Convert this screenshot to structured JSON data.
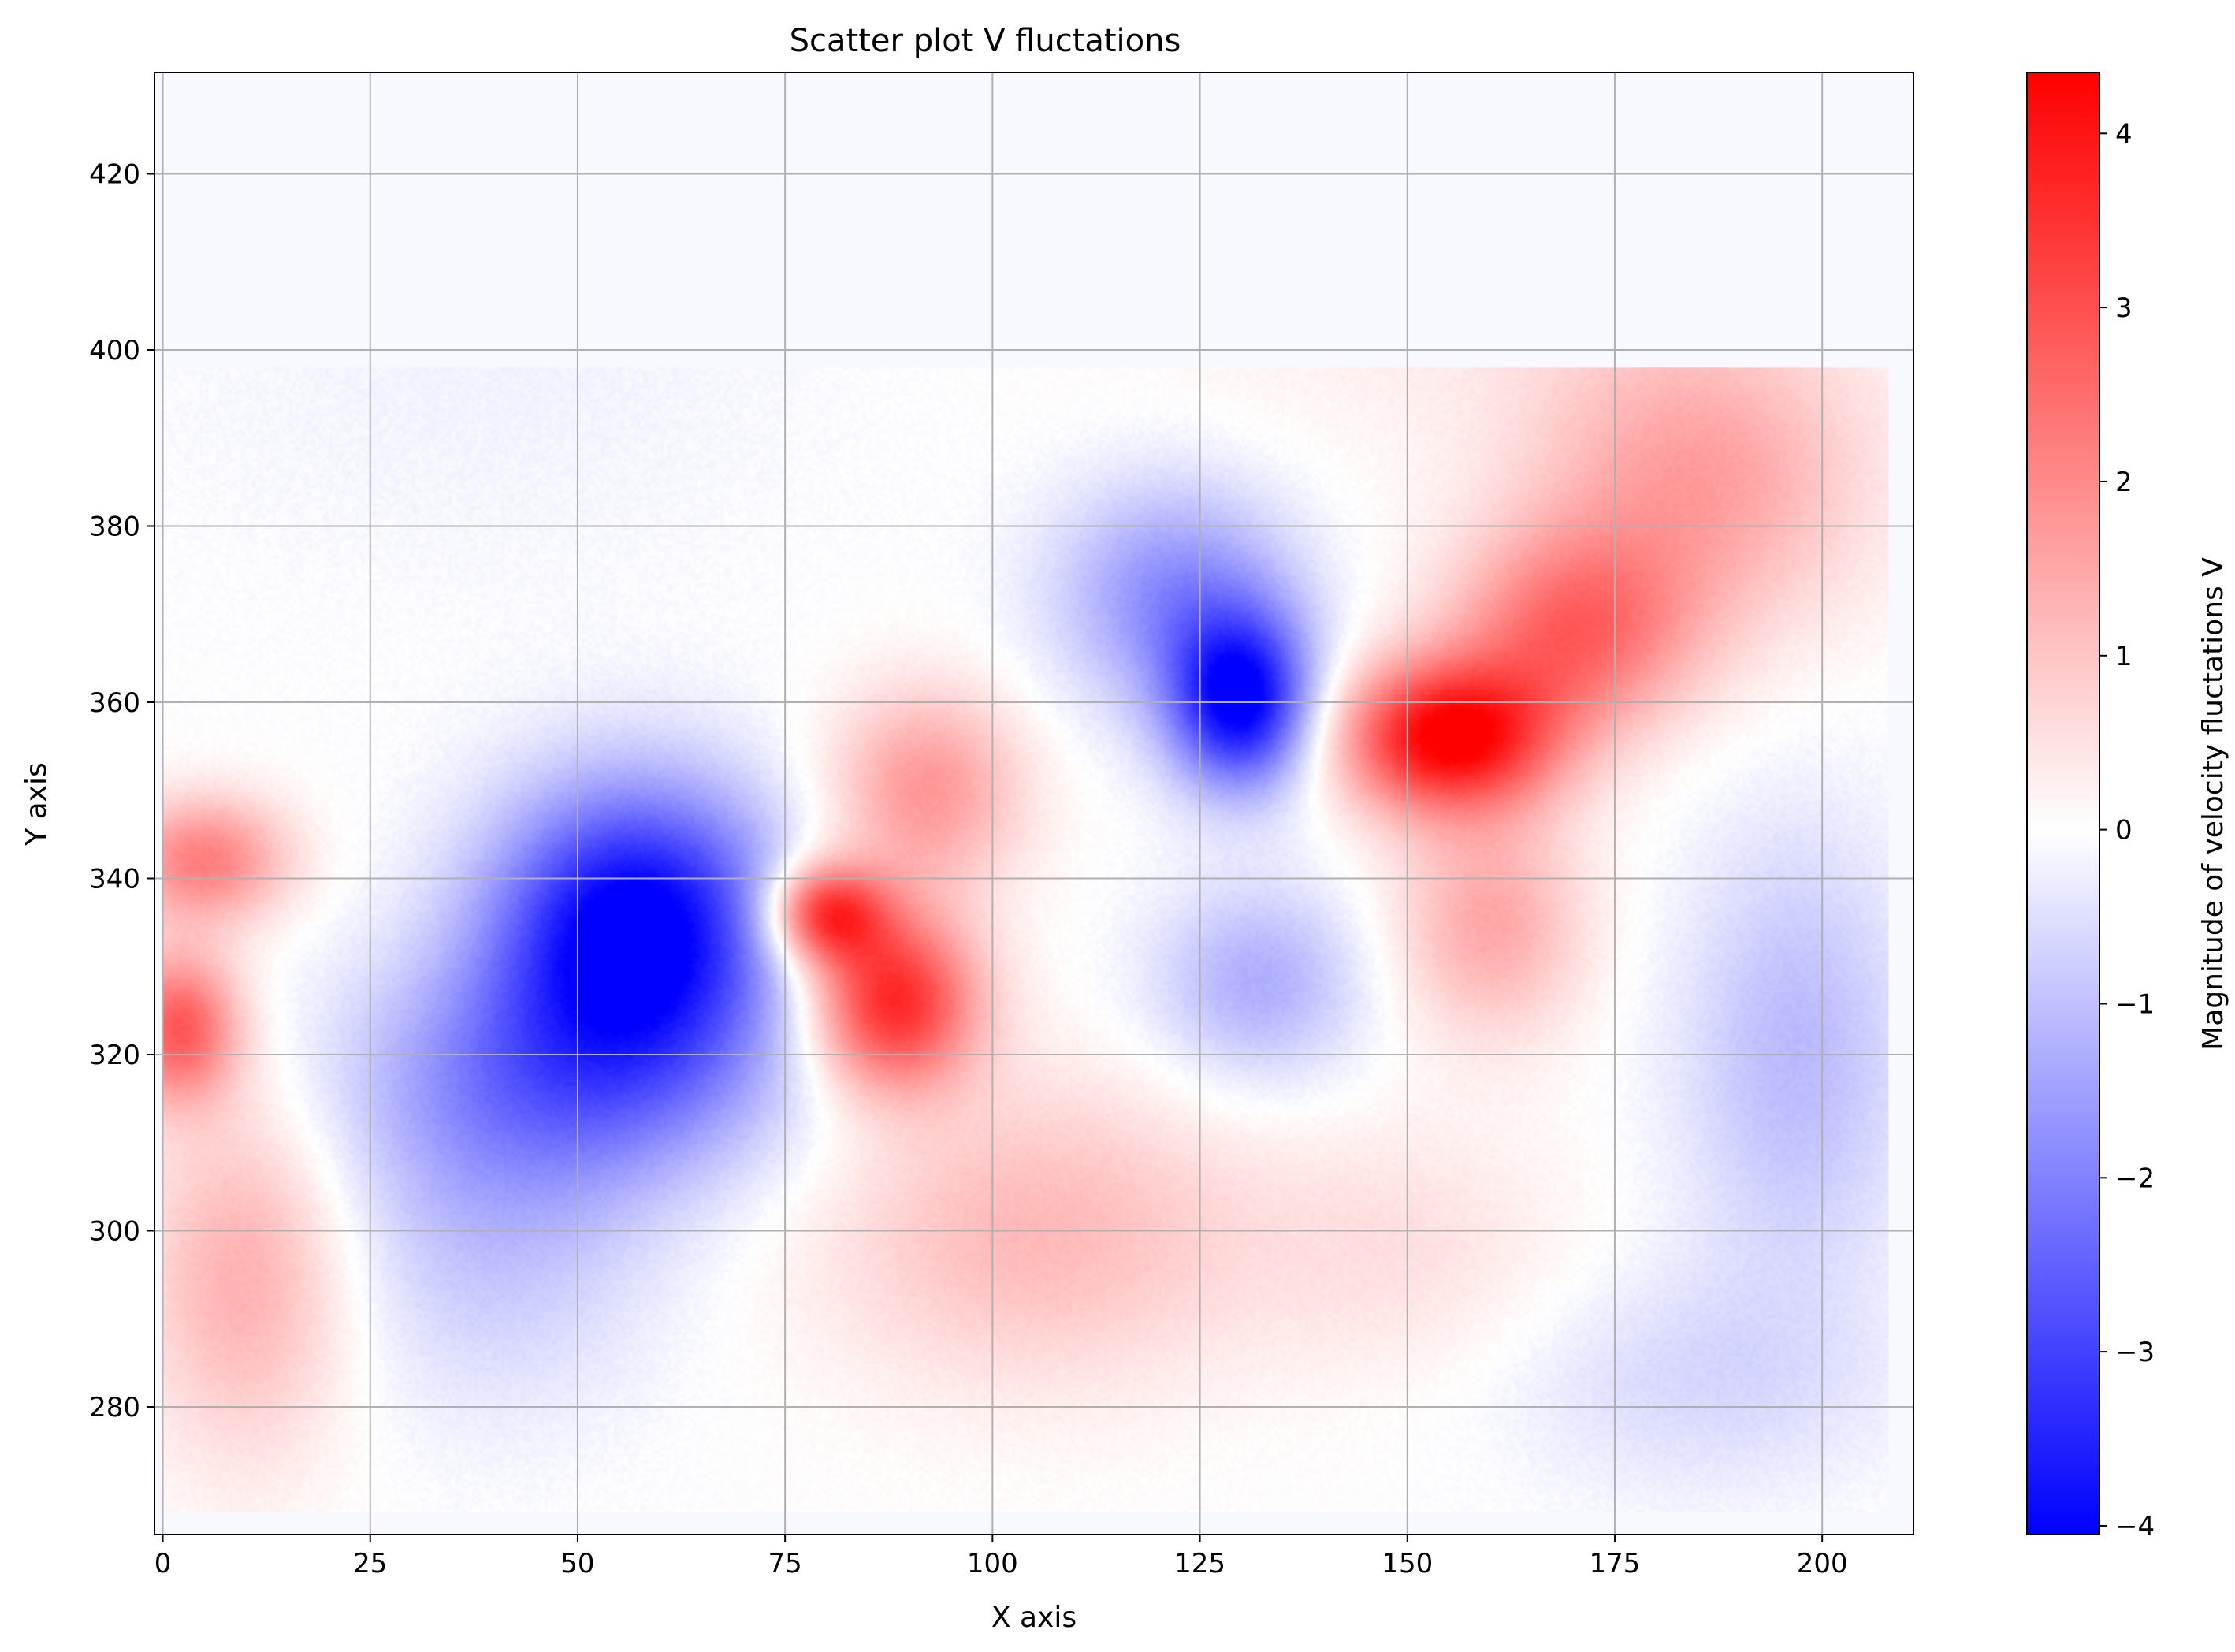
{
  "chart_data": {
    "type": "scatter",
    "title": "Scatter plot V fluctations",
    "xlabel": "X axis",
    "ylabel": "Y axis",
    "xlim": [
      -1,
      211
    ],
    "ylim": [
      265.5,
      431.5
    ],
    "grid": true,
    "x_ticks": [
      0,
      25,
      50,
      75,
      100,
      125,
      150,
      175,
      200
    ],
    "y_ticks": [
      280,
      300,
      320,
      340,
      360,
      380,
      400,
      420
    ],
    "x_tick_labels": [
      "0",
      "25",
      "50",
      "75",
      "100",
      "125",
      "150",
      "175",
      "200"
    ],
    "y_tick_labels": [
      "280",
      "300",
      "320",
      "340",
      "360",
      "380",
      "400",
      "420"
    ],
    "data_extent": {
      "x": [
        0,
        208
      ],
      "y": [
        268,
        398
      ]
    },
    "colorbar": {
      "label": "Magnitude of velocity fluctations V",
      "colormap": "bwr",
      "range": [
        -4.05,
        4.35
      ],
      "ticks": [
        -4,
        -3,
        -2,
        -1,
        0,
        1,
        2,
        3,
        4
      ],
      "tick_labels": [
        "−4",
        "−3",
        "−2",
        "−1",
        "0",
        "1",
        "2",
        "3",
        "4"
      ],
      "low_color": "#0000ff",
      "mid_color": "#ffffff",
      "high_color": "#ff0000"
    },
    "features": [
      {
        "x": 57,
        "y": 335,
        "value": -4.2,
        "sx": 12,
        "sy": 11
      },
      {
        "x": 50,
        "y": 318,
        "value": -2.0,
        "sx": 18,
        "sy": 10
      },
      {
        "x": 40,
        "y": 300,
        "value": -0.9,
        "sx": 14,
        "sy": 14
      },
      {
        "x": 130,
        "y": 360,
        "value": -4.0,
        "sx": 6,
        "sy": 7
      },
      {
        "x": 122,
        "y": 372,
        "value": -1.8,
        "sx": 10,
        "sy": 9
      },
      {
        "x": 132,
        "y": 328,
        "value": -1.3,
        "sx": 9,
        "sy": 8
      },
      {
        "x": 197,
        "y": 320,
        "value": -1.1,
        "sx": 10,
        "sy": 18
      },
      {
        "x": 185,
        "y": 283,
        "value": -0.6,
        "sx": 16,
        "sy": 9
      },
      {
        "x": 5,
        "y": 342,
        "value": 2.2,
        "sx": 7,
        "sy": 5
      },
      {
        "x": 2,
        "y": 323,
        "value": 2.8,
        "sx": 5,
        "sy": 6
      },
      {
        "x": 10,
        "y": 295,
        "value": 1.4,
        "sx": 9,
        "sy": 14
      },
      {
        "x": 80,
        "y": 336,
        "value": 3.6,
        "sx": 5,
        "sy": 4
      },
      {
        "x": 88,
        "y": 326,
        "value": 3.8,
        "sx": 7,
        "sy": 7
      },
      {
        "x": 92,
        "y": 350,
        "value": 1.8,
        "sx": 8,
        "sy": 8
      },
      {
        "x": 105,
        "y": 300,
        "value": 1.2,
        "sx": 18,
        "sy": 12
      },
      {
        "x": 155,
        "y": 356,
        "value": 4.4,
        "sx": 9,
        "sy": 6
      },
      {
        "x": 170,
        "y": 368,
        "value": 2.4,
        "sx": 10,
        "sy": 8
      },
      {
        "x": 185,
        "y": 385,
        "value": 1.6,
        "sx": 14,
        "sy": 12
      },
      {
        "x": 160,
        "y": 335,
        "value": 1.5,
        "sx": 8,
        "sy": 9
      },
      {
        "x": 160,
        "y": 410,
        "value": 0.4,
        "sx": 30,
        "sy": 14
      },
      {
        "x": 150,
        "y": 298,
        "value": 0.5,
        "sx": 14,
        "sy": 10
      },
      {
        "x": 40,
        "y": 400,
        "value": -0.2,
        "sx": 30,
        "sy": 20
      }
    ]
  }
}
